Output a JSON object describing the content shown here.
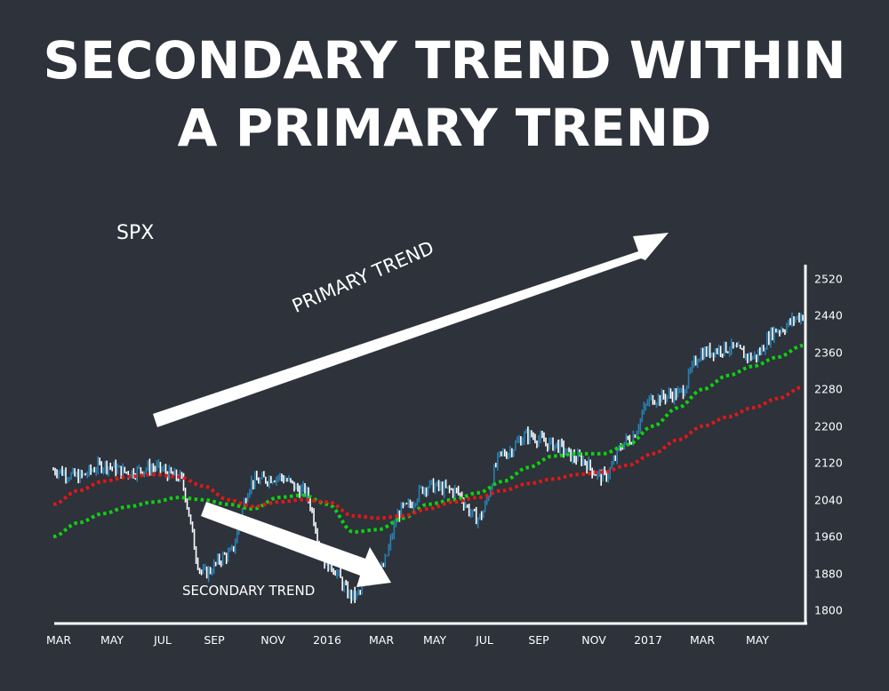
{
  "title": {
    "line1": "SECONDARY TREND WITHIN",
    "line2": "A PRIMARY TREND"
  },
  "ticker": "SPX",
  "annotations": {
    "primary": "PRIMARY TREND",
    "secondary": "SECONDARY TREND"
  },
  "colors": {
    "background": "#2d323b",
    "price_light": "#ffffff",
    "price_dark": "#2a7fb0",
    "sma_short": "#10d010",
    "sma_long": "#e01818",
    "arrow": "#ffffff"
  },
  "chart_data": {
    "type": "line",
    "title": "SECONDARY TREND WITHIN A PRIMARY TREND",
    "subtitle": "SPX",
    "xlabel": "",
    "ylabel": "",
    "ylim": [
      1800,
      2520
    ],
    "yticks": [
      2520,
      2440,
      2360,
      2280,
      2200,
      2120,
      2040,
      1960,
      1880,
      1800
    ],
    "xticks": [
      "MAR",
      "MAY",
      "JUL",
      "SEP",
      "NOV",
      "2016",
      "MAR",
      "MAY",
      "JUL",
      "SEP",
      "NOV",
      "2017",
      "MAR",
      "MAY"
    ],
    "grid": false,
    "legend": "none",
    "x": [
      "2015-03",
      "2015-04",
      "2015-05",
      "2015-06",
      "2015-07",
      "2015-08",
      "2015-08b",
      "2015-09",
      "2015-10",
      "2015-11",
      "2015-12",
      "2016-01",
      "2016-02",
      "2016-02b",
      "2016-03",
      "2016-04",
      "2016-05",
      "2016-06",
      "2016-07",
      "2016-08",
      "2016-09",
      "2016-10",
      "2016-11",
      "2016-11b",
      "2016-12",
      "2017-01",
      "2017-02",
      "2017-03",
      "2017-04",
      "2017-05",
      "2017-06"
    ],
    "series": [
      {
        "name": "SPX Price",
        "values": [
          2105,
          2090,
          2115,
          2100,
          2110,
          2090,
          1880,
          1920,
          2080,
          2090,
          2060,
          1900,
          1830,
          1880,
          2020,
          2070,
          2060,
          2000,
          2140,
          2180,
          2160,
          2130,
          2090,
          2170,
          2260,
          2270,
          2360,
          2370,
          2350,
          2410,
          2440
        ]
      },
      {
        "name": "Moving Average (short, green)",
        "values": [
          1960,
          1990,
          2010,
          2025,
          2035,
          2045,
          2040,
          2030,
          2020,
          2045,
          2050,
          2030,
          1970,
          1975,
          2000,
          2030,
          2040,
          2055,
          2080,
          2110,
          2135,
          2140,
          2140,
          2160,
          2200,
          2240,
          2280,
          2310,
          2330,
          2350,
          2375
        ]
      },
      {
        "name": "Moving Average (long, red)",
        "values": [
          2030,
          2060,
          2080,
          2090,
          2095,
          2090,
          2070,
          2040,
          2025,
          2035,
          2040,
          2035,
          2005,
          2000,
          2005,
          2020,
          2035,
          2045,
          2060,
          2075,
          2085,
          2095,
          2100,
          2115,
          2140,
          2170,
          2200,
          2220,
          2240,
          2260,
          2285
        ]
      }
    ],
    "annotations": [
      {
        "text": "PRIMARY TREND",
        "type": "arrow",
        "direction": "up-right"
      },
      {
        "text": "SECONDARY TREND",
        "type": "arrow",
        "direction": "down-right"
      }
    ]
  }
}
